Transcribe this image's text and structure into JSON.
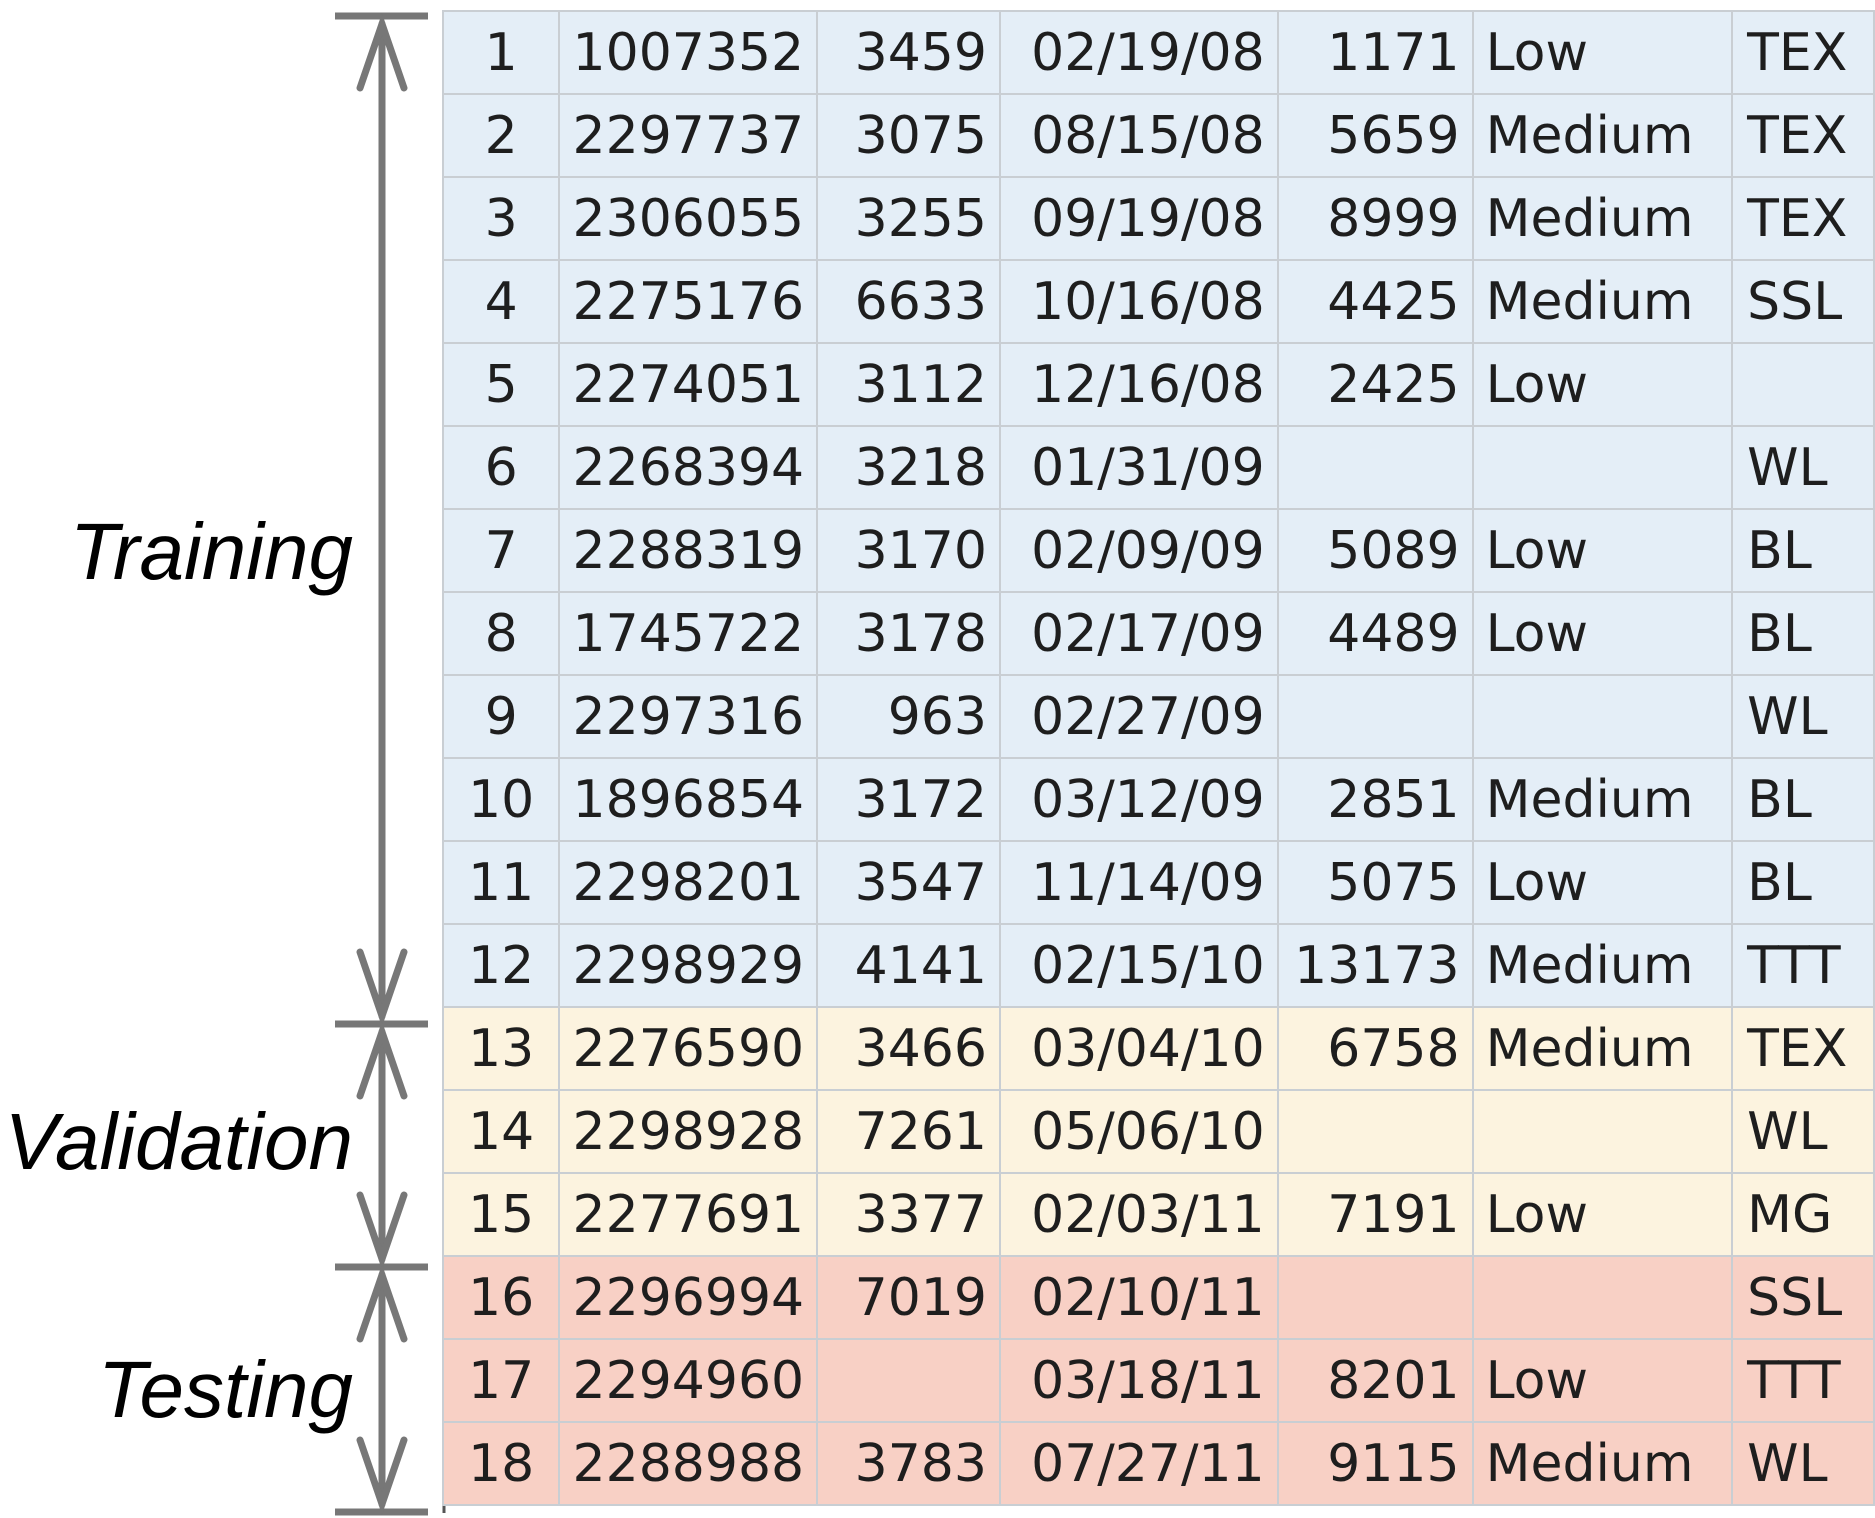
{
  "labels": {
    "training": "Training",
    "validation": "Validation",
    "testing": "Testing"
  },
  "colors": {
    "training": "#e4eef7",
    "validation": "#fcf3df",
    "testing": "#f8d0c5",
    "grid": "#c9ced3",
    "bracket": "#777777",
    "text": "#1e1e1e"
  },
  "rows": [
    {
      "group": "training",
      "cells": [
        "1",
        "1007352",
        "3459",
        "02/19/08",
        "1171",
        "Low",
        "TEX"
      ]
    },
    {
      "group": "training",
      "cells": [
        "2",
        "2297737",
        "3075",
        "08/15/08",
        "5659",
        "Medium",
        "TEX"
      ]
    },
    {
      "group": "training",
      "cells": [
        "3",
        "2306055",
        "3255",
        "09/19/08",
        "8999",
        "Medium",
        "TEX"
      ]
    },
    {
      "group": "training",
      "cells": [
        "4",
        "2275176",
        "6633",
        "10/16/08",
        "4425",
        "Medium",
        "SSL"
      ]
    },
    {
      "group": "training",
      "cells": [
        "5",
        "2274051",
        "3112",
        "12/16/08",
        "2425",
        "Low",
        ""
      ]
    },
    {
      "group": "training",
      "cells": [
        "6",
        "2268394",
        "3218",
        "01/31/09",
        "",
        "",
        "WL"
      ]
    },
    {
      "group": "training",
      "cells": [
        "7",
        "2288319",
        "3170",
        "02/09/09",
        "5089",
        "Low",
        "BL"
      ]
    },
    {
      "group": "training",
      "cells": [
        "8",
        "1745722",
        "3178",
        "02/17/09",
        "4489",
        "Low",
        "BL"
      ]
    },
    {
      "group": "training",
      "cells": [
        "9",
        "2297316",
        "963",
        "02/27/09",
        "",
        "",
        "WL"
      ]
    },
    {
      "group": "training",
      "cells": [
        "10",
        "1896854",
        "3172",
        "03/12/09",
        "2851",
        "Medium",
        "BL"
      ]
    },
    {
      "group": "training",
      "cells": [
        "11",
        "2298201",
        "3547",
        "11/14/09",
        "5075",
        "Low",
        "BL"
      ]
    },
    {
      "group": "training",
      "cells": [
        "12",
        "2298929",
        "4141",
        "02/15/10",
        "13173",
        "Medium",
        "TTT"
      ]
    },
    {
      "group": "validation",
      "cells": [
        "13",
        "2276590",
        "3466",
        "03/04/10",
        "6758",
        "Medium",
        "TEX"
      ]
    },
    {
      "group": "validation",
      "cells": [
        "14",
        "2298928",
        "7261",
        "05/06/10",
        "",
        "",
        "WL"
      ]
    },
    {
      "group": "validation",
      "cells": [
        "15",
        "2277691",
        "3377",
        "02/03/11",
        "7191",
        "Low",
        "MG"
      ]
    },
    {
      "group": "testing",
      "cells": [
        "16",
        "2296994",
        "7019",
        "02/10/11",
        "",
        "",
        "SSL"
      ]
    },
    {
      "group": "testing",
      "cells": [
        "17",
        "2294960",
        "",
        "03/18/11",
        "8201",
        "Low",
        "TTT"
      ]
    },
    {
      "group": "testing",
      "cells": [
        "18",
        "2288988",
        "3783",
        "07/27/11",
        "9115",
        "Medium",
        "WL"
      ]
    }
  ]
}
